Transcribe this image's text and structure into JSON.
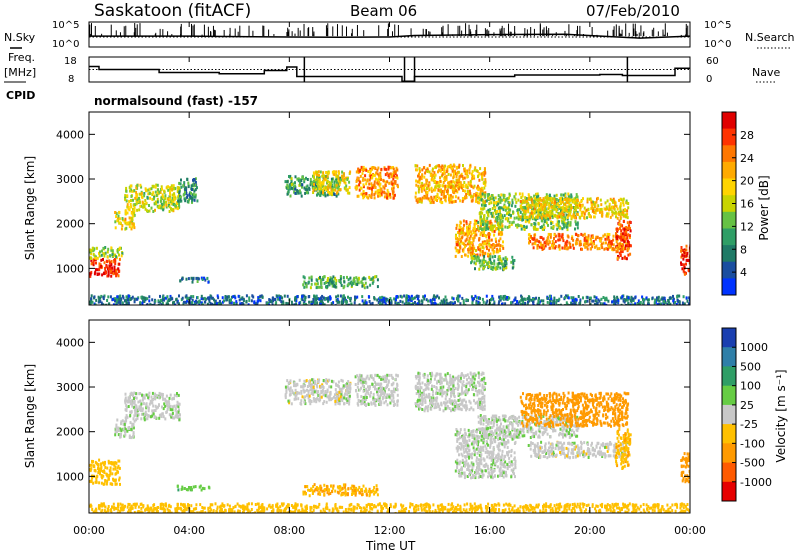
{
  "header": {
    "station": "Saskatoon (fitACF)",
    "beam": "Beam 06",
    "date": "07/Feb/2010"
  },
  "side_labels": {
    "nsky": "N.Sky",
    "freq": "Freq.",
    "freq_unit": "[MHz]",
    "cpid": "CPID",
    "nsearch": "N.Search",
    "nave": "Nave"
  },
  "cpid_text": "normalsound (fast) -157",
  "axes": {
    "x_ticks": [
      "00:00",
      "04:00",
      "08:00",
      "12:00",
      "16:00",
      "20:00",
      "00:00"
    ],
    "xlabel": "Time UT",
    "ylabel": "Slant Range [km]",
    "y_ticks": [
      "1000",
      "2000",
      "3000",
      "4000"
    ],
    "nsky_ticks": [
      "10^5",
      "10^0"
    ],
    "nsearch_ticks": [
      "10^5",
      "10^0"
    ],
    "freq_ticks": [
      "18",
      "8"
    ],
    "nave_ticks": [
      "60",
      "0"
    ]
  },
  "colorbars": {
    "power": {
      "label": "Power [dB]",
      "ticks": [
        "28",
        "24",
        "20",
        "16",
        "12",
        "8",
        "4"
      ],
      "colors": [
        "#e00000",
        "#ff3300",
        "#ff7700",
        "#ffaa00",
        "#ffd400",
        "#c8d400",
        "#66c244",
        "#2f9e66",
        "#1f7a66",
        "#1a4ea0",
        "#0033ff"
      ]
    },
    "velocity": {
      "label": "Velocity [m s⁻¹]",
      "ticks": [
        "1000",
        "500",
        "100",
        "25",
        "-25",
        "-100",
        "-500",
        "-1000"
      ],
      "colors": [
        "#1a3fb0",
        "#2f7fa8",
        "#2f9e66",
        "#66cc44",
        "#c8c8c8",
        "#ffc000",
        "#ff9a00",
        "#ff5a00",
        "#e60000"
      ]
    }
  },
  "chart_data": [
    {
      "type": "line",
      "title": "N.Sky / N.Search",
      "x_unit": "hours UT",
      "y_scale": "log",
      "ylim": [
        "10^0",
        "10^5"
      ],
      "series": [
        {
          "name": "N.Sky",
          "x": [
            0,
            1,
            2,
            4,
            6,
            8,
            10,
            12,
            13,
            16,
            19,
            21.5,
            22,
            24
          ],
          "y": [
            150,
            150,
            150,
            150,
            120,
            100,
            90,
            100,
            200,
            300,
            350,
            80,
            60,
            150
          ]
        },
        {
          "name": "N.Search",
          "x": [
            0,
            24
          ],
          "y": [
            100,
            100
          ]
        }
      ]
    },
    {
      "type": "line",
      "title": "Freq. / Nave",
      "x_unit": "hours UT",
      "series": [
        {
          "name": "Freq. [MHz]",
          "x": [
            0,
            0.4,
            0.4,
            2.8,
            2.8,
            5.2,
            5.2,
            7.0,
            7.0,
            7.9,
            7.9,
            8.3,
            8.3,
            12.5,
            12.5,
            13.0,
            13.0,
            17.0,
            17.0,
            20.4,
            20.4,
            21.3,
            21.3,
            23.4,
            23.4,
            24.0
          ],
          "y": [
            14.2,
            14.2,
            13,
            13,
            11.8,
            11.8,
            11.3,
            11.3,
            12.6,
            12.6,
            14.0,
            14.0,
            10.2,
            10.2,
            8.3,
            8.3,
            10.2,
            10.2,
            10.8,
            10.8,
            11.0,
            11.0,
            10.6,
            10.6,
            13.5,
            13.5
          ]
        },
        {
          "name": "Nave",
          "x": [
            0,
            24
          ],
          "y": [
            30,
            30
          ]
        }
      ],
      "ylim_freq": [
        8,
        18
      ],
      "ylim_nave": [
        0,
        60
      ]
    },
    {
      "type": "heatmap",
      "title": "Power [dB]",
      "x_unit": "hours UT",
      "xlim": [
        0,
        24
      ],
      "ylim": [
        180,
        4500
      ],
      "ylabel": "Slant Range [km]",
      "clim": [
        0,
        30
      ],
      "regions": [
        {
          "x0": 0.0,
          "x1": 1.2,
          "y0": 850,
          "y1": 1250,
          "value": 29
        },
        {
          "x0": 0.0,
          "x1": 1.3,
          "y0": 1250,
          "y1": 1500,
          "value": 14
        },
        {
          "x0": 1.0,
          "x1": 1.8,
          "y0": 1900,
          "y1": 2300,
          "value": 18
        },
        {
          "x0": 1.4,
          "x1": 3.6,
          "y0": 2300,
          "y1": 2900,
          "value": 15
        },
        {
          "x0": 3.5,
          "x1": 4.3,
          "y0": 2500,
          "y1": 3050,
          "value": 8
        },
        {
          "x0": 3.5,
          "x1": 4.8,
          "y0": 720,
          "y1": 820,
          "value": 6
        },
        {
          "x0": 7.8,
          "x1": 10.0,
          "y0": 2650,
          "y1": 3100,
          "value": 9
        },
        {
          "x0": 8.9,
          "x1": 10.4,
          "y0": 2700,
          "y1": 3200,
          "value": 17
        },
        {
          "x0": 10.6,
          "x1": 12.3,
          "y0": 2600,
          "y1": 3300,
          "value": 22
        },
        {
          "x0": 8.5,
          "x1": 11.5,
          "y0": 600,
          "y1": 850,
          "value": 10
        },
        {
          "x0": 13.0,
          "x1": 15.8,
          "y0": 2500,
          "y1": 3350,
          "value": 20
        },
        {
          "x0": 14.6,
          "x1": 16.5,
          "y0": 1300,
          "y1": 2100,
          "value": 21
        },
        {
          "x0": 15.2,
          "x1": 17.0,
          "y0": 1000,
          "y1": 1300,
          "value": 11
        },
        {
          "x0": 15.5,
          "x1": 19.5,
          "y0": 1900,
          "y1": 2700,
          "value": 13
        },
        {
          "x0": 17.2,
          "x1": 21.5,
          "y0": 2150,
          "y1": 2600,
          "value": 18
        },
        {
          "x0": 17.5,
          "x1": 21.5,
          "y0": 1450,
          "y1": 1800,
          "value": 23
        },
        {
          "x0": 21.0,
          "x1": 21.6,
          "y0": 1200,
          "y1": 2100,
          "value": 26
        },
        {
          "x0": 23.6,
          "x1": 24.0,
          "y0": 900,
          "y1": 1550,
          "value": 28
        },
        {
          "x0": 0.0,
          "x1": 24.0,
          "y0": 180,
          "y1": 420,
          "value": 5
        }
      ]
    },
    {
      "type": "heatmap",
      "title": "Velocity [m s⁻¹]",
      "x_unit": "hours UT",
      "xlim": [
        0,
        24
      ],
      "ylim": [
        180,
        4500
      ],
      "ylabel": "Slant Range [km]",
      "clim": [
        -1000,
        1000
      ],
      "regions": [
        {
          "x0": 0.0,
          "x1": 1.2,
          "y0": 850,
          "y1": 1400,
          "value": -60
        },
        {
          "x0": 1.0,
          "x1": 1.8,
          "y0": 1900,
          "y1": 2300,
          "value": 10
        },
        {
          "x0": 1.4,
          "x1": 3.6,
          "y0": 2300,
          "y1": 2900,
          "value": 5
        },
        {
          "x0": 3.5,
          "x1": 4.8,
          "y0": 720,
          "y1": 820,
          "value": 80
        },
        {
          "x0": 7.8,
          "x1": 10.4,
          "y0": 2650,
          "y1": 3200,
          "value": 0
        },
        {
          "x0": 10.6,
          "x1": 12.3,
          "y0": 2600,
          "y1": 3300,
          "value": 5
        },
        {
          "x0": 8.5,
          "x1": 11.5,
          "y0": 600,
          "y1": 850,
          "value": -90
        },
        {
          "x0": 13.0,
          "x1": 15.8,
          "y0": 2500,
          "y1": 3350,
          "value": 5
        },
        {
          "x0": 14.6,
          "x1": 17.0,
          "y0": 1000,
          "y1": 2100,
          "value": 5
        },
        {
          "x0": 15.5,
          "x1": 19.5,
          "y0": 1900,
          "y1": 2400,
          "value": 8
        },
        {
          "x0": 17.2,
          "x1": 21.5,
          "y0": 2150,
          "y1": 2900,
          "value": -300
        },
        {
          "x0": 17.5,
          "x1": 21.5,
          "y0": 1450,
          "y1": 1800,
          "value": 0
        },
        {
          "x0": 21.0,
          "x1": 21.6,
          "y0": 1200,
          "y1": 2100,
          "value": -80
        },
        {
          "x0": 23.6,
          "x1": 24.0,
          "y0": 900,
          "y1": 1550,
          "value": -150
        },
        {
          "x0": 0.0,
          "x1": 24.0,
          "y0": 180,
          "y1": 420,
          "value": -60
        }
      ]
    }
  ]
}
